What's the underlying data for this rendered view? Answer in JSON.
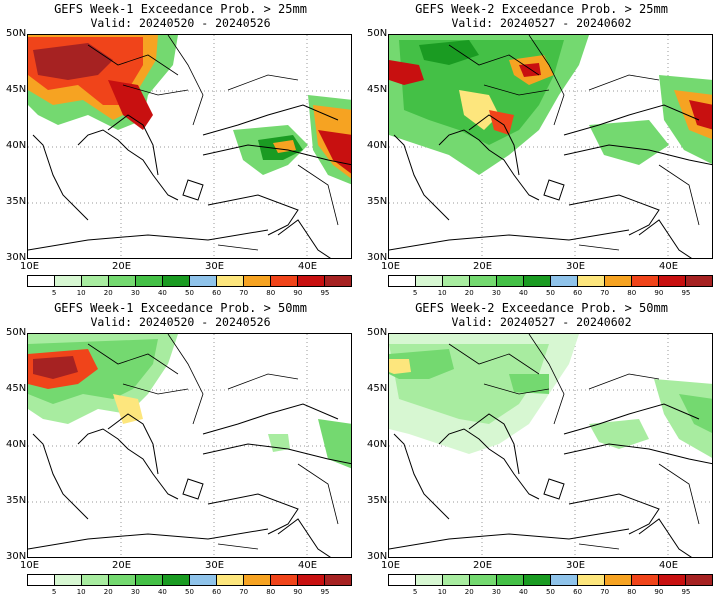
{
  "panels": [
    {
      "line1": "GEFS Week-1 Exceedance Prob. > 25mm",
      "line2": "Valid: 20240520 - 20240526"
    },
    {
      "line1": "GEFS Week-2 Exceedance Prob. > 25mm",
      "line2": "Valid: 20240527 - 20240602"
    },
    {
      "line1": "GEFS Week-1 Exceedance Prob. > 50mm",
      "line2": "Valid: 20240520 - 20240526"
    },
    {
      "line1": "GEFS Week-2 Exceedance Prob. > 50mm",
      "line2": "Valid: 20240527 - 20240602"
    }
  ],
  "lat_labels": [
    "50N",
    "45N",
    "40N",
    "35N",
    "30N"
  ],
  "lon_labels": [
    "10E",
    "20E",
    "30E",
    "40E"
  ],
  "colorbar": {
    "labels": [
      "5",
      "10",
      "20",
      "30",
      "40",
      "50",
      "60",
      "70",
      "80",
      "90",
      "95"
    ],
    "colors": [
      "#ffffff",
      "#d7f7d2",
      "#a8eca0",
      "#74d970",
      "#44c046",
      "#1a9b22",
      "#8fc3ea",
      "#fde67d",
      "#f6a322",
      "#f0441a",
      "#c81010",
      "#a62222"
    ]
  }
}
